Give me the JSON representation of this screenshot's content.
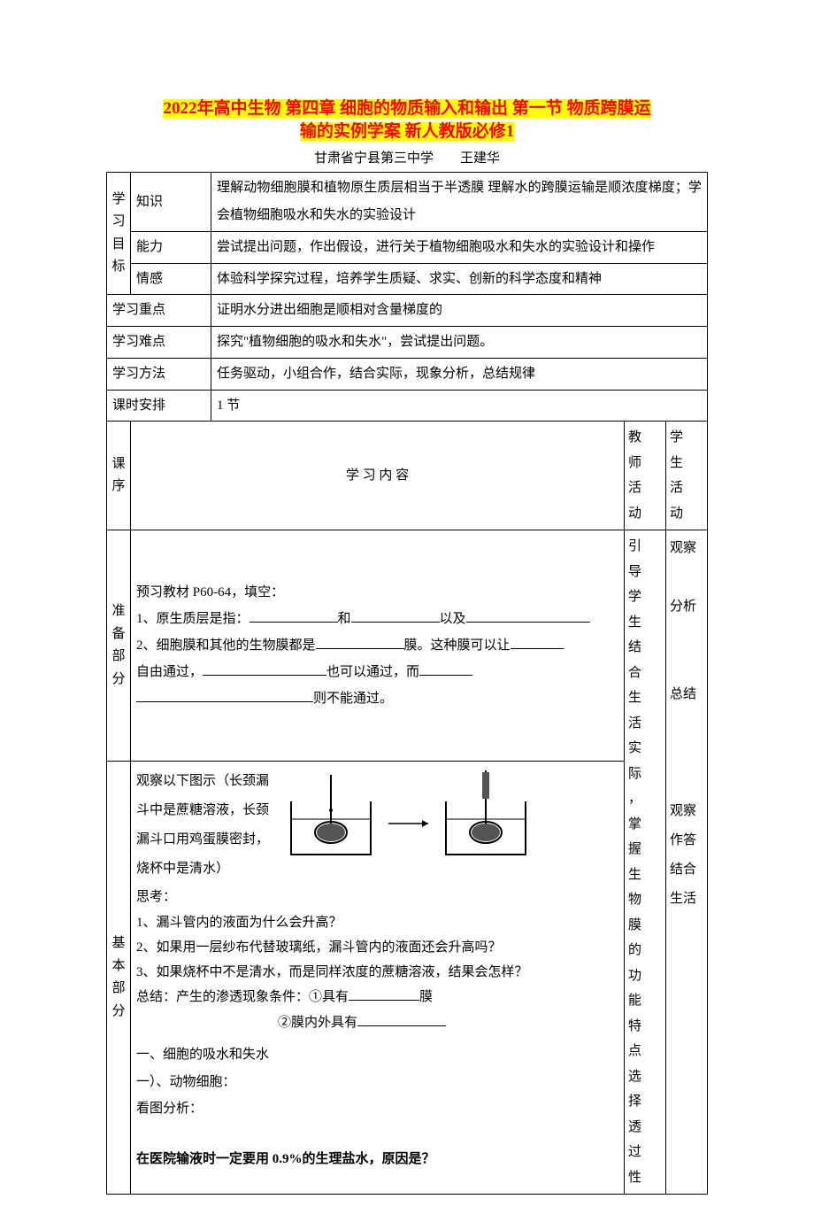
{
  "title_l1": "2022年高中生物 第四章 细胞的物质输入和输出 第一节 物质跨膜运",
  "title_l2": "输的实例学案 新人教版必修1",
  "subtitle": "甘肃省宁县第三中学　　王建华",
  "rows": {
    "goal_label": "学习目标",
    "knowledge": "知识",
    "knowledge_c": "理解动物细胞膜和植物原生质层相当于半透膜 理解水的跨膜运输是顺浓度梯度；学会植物细胞吸水和失水的实验设计",
    "ability": "能力",
    "ability_c": "尝试提出问题，作出假设，进行关于植物细胞吸水和失水的实验设计和操作",
    "emotion": "情感",
    "emotion_c": "体验科学探究过程，培养学生质疑、求实、创新的科学态度和精神",
    "key_l": "学习重点",
    "key_c": "证明水分进出细胞是顺相对含量梯度的",
    "diff_l": "学习难点",
    "diff_c": "探究\"植物细胞的吸水和失水\"，尝试提出问题。",
    "method_l": "学习方法",
    "method_c": "任务驱动，小组合作，结合实际，现象分析，总结规律",
    "period_l": "课时安排",
    "period_c": "1 节",
    "seq_l": "课序",
    "content_l": "学 习  内  容",
    "teacher_l": "教师活动",
    "student_l": "学生活动"
  },
  "prep": {
    "label": "准备部分",
    "l1a": "预习教材 P60-64，填空：",
    "l2a": "1、原生质层是指：",
    "l2b": "和",
    "l2c": "以及",
    "l3a": "2、细胞膜和其他的生物膜都是",
    "l3b": "膜。这种膜可以让",
    "l4a": "自由通过，",
    "l4b": "也可以通过，而",
    "l5a": "则不能通过。"
  },
  "base": {
    "label": "基本部分",
    "d1": "观察以下图示（长颈漏",
    "d2": "斗中是蔗糖溶液，长颈",
    "d3": "漏斗口用鸡蛋膜密封，",
    "d4": "烧杯中是清水）",
    "think_h": "思考：",
    "q1": "1、漏斗管内的液面为什么会升高？",
    "q2": "2、如果用一层纱布代替玻璃纸，漏斗管内的液面还会升高吗？",
    "q3": "3、如果烧杯中不是清水，而是同样浓度的蔗糖溶液，结果会怎样？",
    "sum_a": "总结：产生的渗透现象条件：①具有",
    "sum_a2": "膜",
    "sum_b": "②膜内外具有",
    "h1": "一、细胞的吸水和失水",
    "h2": "一）、动物细胞：",
    "h3": "看图分析：",
    "h4": "在医院输液时一定要用 0.9%的生理盐水，原因是？"
  },
  "teacher_act": "引导学生结合生活实际，掌握生物膜的功能特点选择透过性",
  "student_act": {
    "a1": "观察",
    "a2": "分析",
    "a3": "总结",
    "a4": "观察",
    "a5": "作答",
    "a6": "结合",
    "a7": "生活"
  },
  "diagram": {
    "beaker_stroke": "#000000",
    "funnel_fill": "#444444",
    "arrow_stroke": "#000000"
  }
}
